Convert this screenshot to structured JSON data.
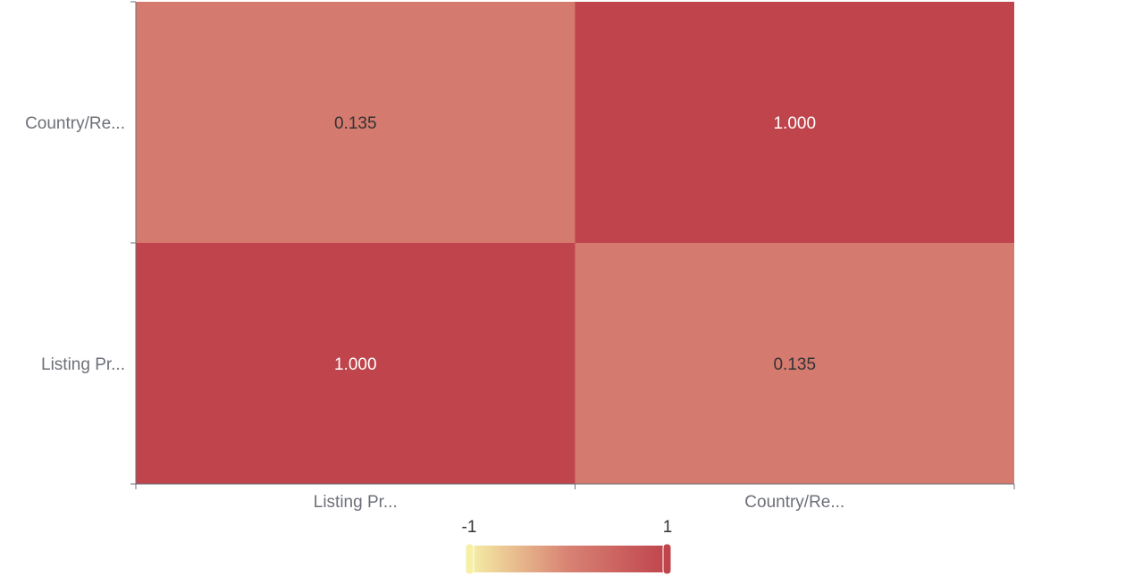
{
  "chart_data": {
    "type": "heatmap",
    "x_categories": [
      "Listing Pr...",
      "Country/Re..."
    ],
    "y_categories": [
      "Listing Pr...",
      "Country/Re..."
    ],
    "values": [
      {
        "x": 0,
        "y": 0,
        "value": 1.0,
        "label": "1.000"
      },
      {
        "x": 1,
        "y": 0,
        "value": 0.135,
        "label": "0.135"
      },
      {
        "x": 0,
        "y": 1,
        "value": 0.135,
        "label": "0.135"
      },
      {
        "x": 1,
        "y": 1,
        "value": 1.0,
        "label": "1.000"
      }
    ],
    "visual_map": {
      "min": -1,
      "max": 1,
      "min_label": "-1",
      "max_label": "1",
      "position": "bottom-center"
    },
    "colors": {
      "low": "#f6efa6",
      "mid": "#d88273",
      "high": "#bf444c"
    },
    "title": "",
    "xlabel": "",
    "ylabel": ""
  }
}
